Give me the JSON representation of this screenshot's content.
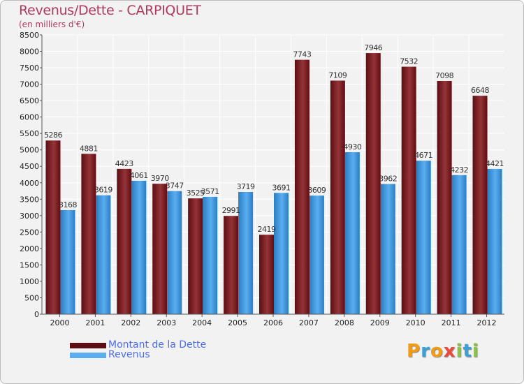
{
  "title": "Revenus/Dette - CARPIQUET",
  "subtitle": "(en milliers d'€)",
  "colors": {
    "debt_dark": "#5e0d12",
    "debt_light": "#943438",
    "revenue_dark": "#2a7dc2",
    "revenue_light": "#5aaef0",
    "title": "#b03a5b",
    "legend_text": "#4d6ee8"
  },
  "legend": {
    "debt_label": "Montant de la Dette",
    "revenue_label": "Revenus"
  },
  "logo": {
    "letters": [
      "P",
      "r",
      "o",
      "x",
      "i",
      "t",
      "i"
    ],
    "colors": [
      "#f39c12",
      "#3aa0d8",
      "#f39c12",
      "#e74c3c",
      "#8bc34a",
      "#3aa0d8",
      "#8bc34a"
    ]
  },
  "chart_data": {
    "type": "bar",
    "categories": [
      "2000",
      "2001",
      "2002",
      "2003",
      "2004",
      "2005",
      "2006",
      "2007",
      "2008",
      "2009",
      "2010",
      "2011",
      "2012"
    ],
    "series": [
      {
        "name": "Montant de la Dette",
        "values": [
          5286,
          4881,
          4423,
          3970,
          3525,
          2991,
          2419,
          7743,
          7109,
          7946,
          7532,
          7098,
          6648
        ]
      },
      {
        "name": "Revenus",
        "values": [
          3168,
          3619,
          4061,
          3747,
          3571,
          3719,
          3691,
          3609,
          4930,
          3962,
          4671,
          4232,
          4421
        ]
      }
    ],
    "ylim": [
      0,
      8500
    ],
    "yticks": [
      0,
      500,
      1000,
      1500,
      2000,
      2500,
      3000,
      3500,
      4000,
      4500,
      5000,
      5500,
      6000,
      6500,
      7000,
      7500,
      8000,
      8500
    ],
    "title": "Revenus/Dette - CARPIQUET",
    "legend_position": "bottom-left",
    "grid": true
  }
}
